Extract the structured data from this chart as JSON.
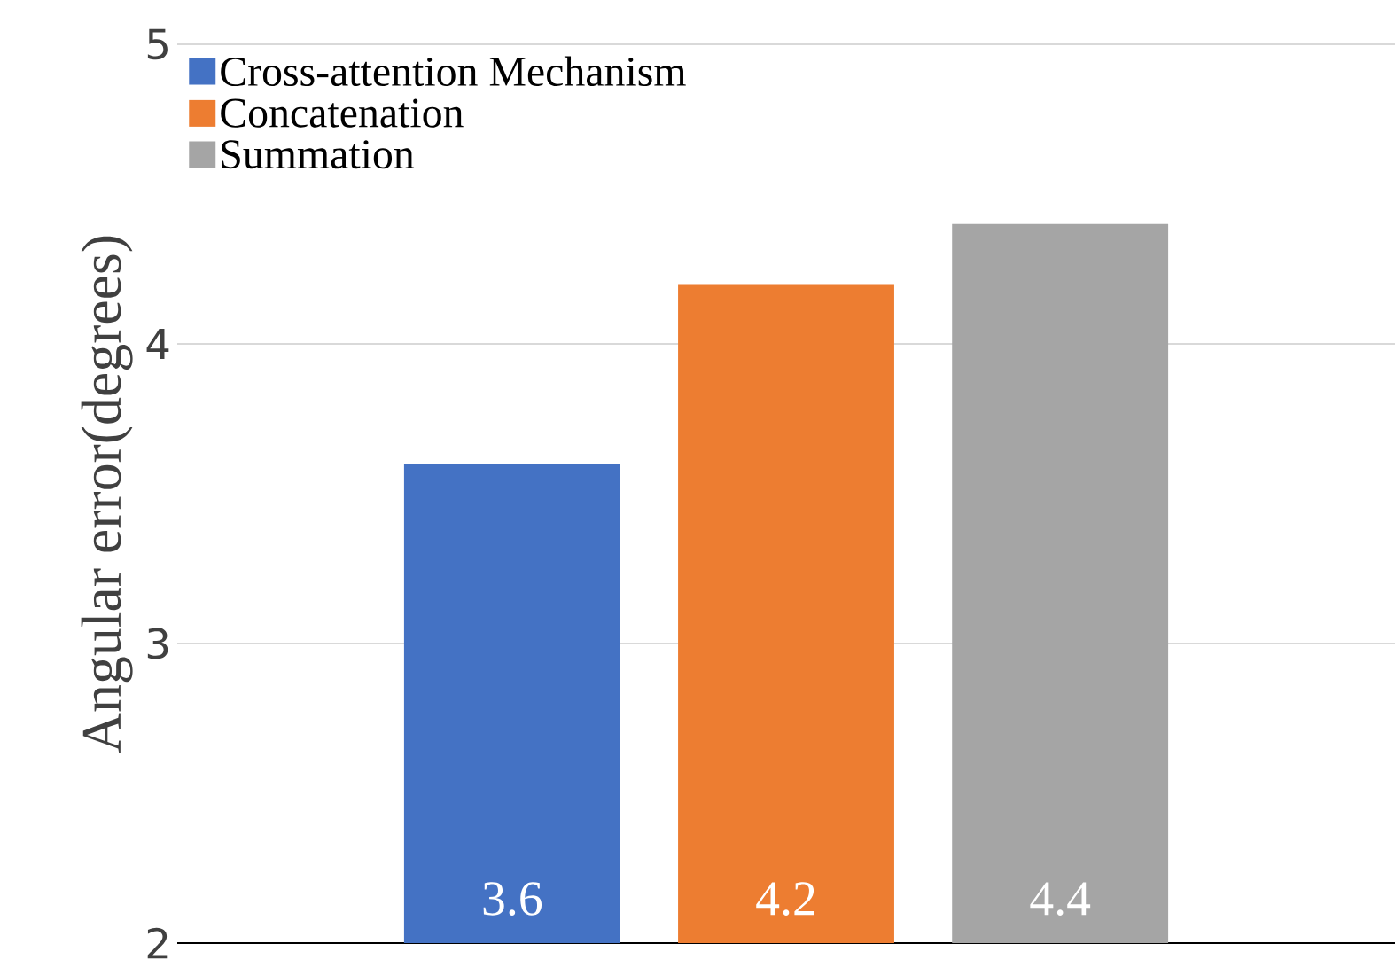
{
  "chart_data": {
    "type": "bar",
    "ylabel": "Angular  error(degrees)",
    "categories": [
      null
    ],
    "series": [
      {
        "name": "Cross-attention Mechanism",
        "color": "#4472c4",
        "values": [
          3.6
        ]
      },
      {
        "name": "Concatenation",
        "color": "#ed7d31",
        "values": [
          4.2
        ]
      },
      {
        "name": "Summation",
        "color": "#a5a5a5",
        "values": [
          4.4
        ]
      }
    ],
    "ylim": [
      2,
      5
    ],
    "yticks": [
      2,
      3,
      4,
      5
    ],
    "grid": "y",
    "legend": "top left",
    "data_labels": true
  }
}
